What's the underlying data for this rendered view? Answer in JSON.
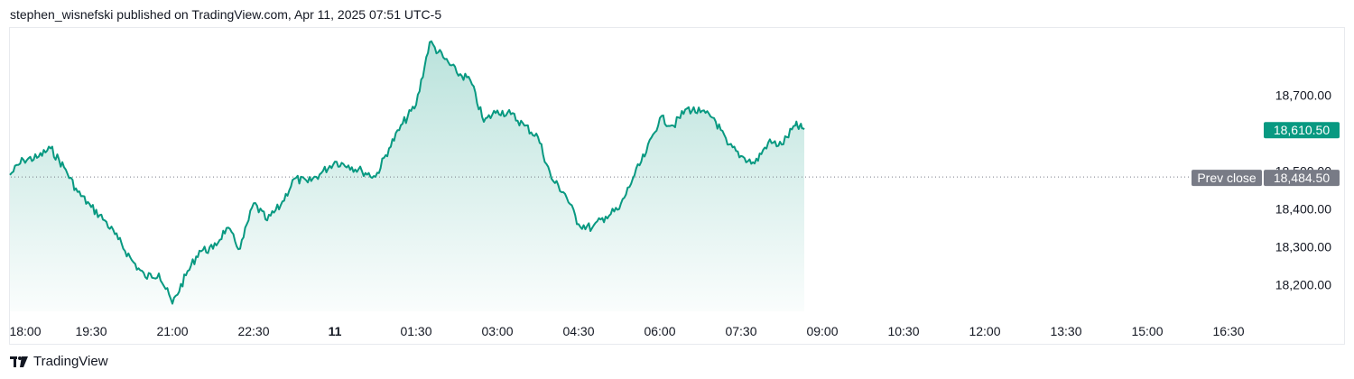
{
  "header": {
    "attribution": "stephen_wisnefski published on TradingView.com, Apr 11, 2025 07:51 UTC-5"
  },
  "footer": {
    "brand": "TradingView",
    "logo_icon": "tradingview-logo-icon"
  },
  "colors": {
    "line": "#089981",
    "fill": "#089981",
    "prev_close_badge": "#787b86",
    "last_badge": "#089981"
  },
  "chart_data": {
    "type": "area",
    "x_ticks": [
      "18:00",
      "19:30",
      "21:00",
      "22:30",
      "11",
      "01:30",
      "03:00",
      "04:30",
      "06:00",
      "07:30",
      "09:00",
      "10:30",
      "12:00",
      "13:30",
      "15:00",
      "16:30"
    ],
    "x_tick_bold": "11",
    "y_ticks": [
      "18,700.00",
      "18,500.00",
      "18,400.00",
      "18,300.00",
      "18,200.00"
    ],
    "ylim": [
      18130,
      18880
    ],
    "prev_close": {
      "label": "Prev close",
      "value": 18484.5,
      "value_label": "18,484.50"
    },
    "last_price": {
      "value": 18610.5,
      "value_label": "18,610.50"
    },
    "series": [
      {
        "x": [
          "18:00",
          "18:15",
          "18:30",
          "18:45",
          "19:00",
          "19:15",
          "19:30",
          "19:45",
          "20:00",
          "20:15",
          "20:30",
          "20:45",
          "21:00",
          "21:15",
          "21:30",
          "21:45",
          "22:00",
          "22:15",
          "22:30",
          "22:45",
          "23:00",
          "23:15",
          "23:30",
          "23:45",
          "00:00",
          "00:15",
          "00:30",
          "00:45",
          "01:00",
          "01:15",
          "01:30",
          "01:45",
          "02:00",
          "02:15",
          "02:30",
          "02:45",
          "03:00",
          "03:15",
          "03:30",
          "03:45",
          "04:00",
          "04:15",
          "04:30",
          "04:45",
          "05:00",
          "05:15",
          "05:30",
          "05:45",
          "06:00",
          "06:15",
          "06:30",
          "06:45",
          "07:00",
          "07:15",
          "07:30",
          "07:45",
          "08:00",
          "08:15",
          "08:30",
          "08:40"
        ],
        "y": [
          18490,
          18530,
          18535,
          18560,
          18510,
          18445,
          18405,
          18370,
          18320,
          18265,
          18220,
          18230,
          18150,
          18225,
          18290,
          18295,
          18350,
          18295,
          18415,
          18370,
          18410,
          18480,
          18470,
          18495,
          18525,
          18515,
          18500,
          18485,
          18560,
          18625,
          18675,
          18840,
          18800,
          18760,
          18740,
          18630,
          18660,
          18650,
          18620,
          18590,
          18480,
          18440,
          18360,
          18350,
          18380,
          18400,
          18480,
          18550,
          18640,
          18620,
          18665,
          18655,
          18640,
          18570,
          18540,
          18520,
          18575,
          18570,
          18620,
          18610
        ]
      }
    ]
  }
}
